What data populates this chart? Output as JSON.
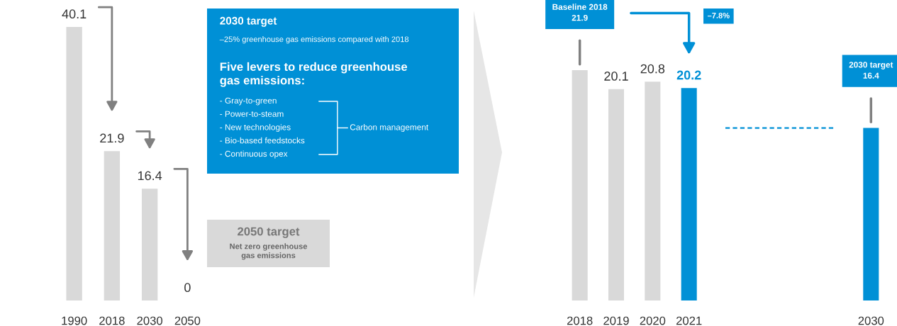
{
  "chart_data": [
    {
      "type": "bar",
      "categories": [
        "1990",
        "2018",
        "2030",
        "2050"
      ],
      "data_labels": true,
      "series": [
        {
          "type": "bar",
          "color": "#d9d9d9",
          "values": [
            40.1,
            21.9,
            16.4,
            0
          ]
        }
      ]
    },
    {
      "type": "other",
      "title": "2030 target",
      "subtitle": "–25% greenhouse gas emissions compared with 2018",
      "annotations": [
        "Five levers to reduce greenhouse\ngas emissions:",
        "- Gray-to-green",
        "- Power-to-steam",
        "- New technologies",
        "- Bio-based feedstocks",
        "- Continuous opex",
        "Carbon management"
      ]
    },
    {
      "type": "other",
      "title": "2050 target",
      "subtitle": "Net zero greenhouse\ngas emissions"
    },
    {
      "type": "bar",
      "categories": [
        "2018",
        "2019",
        "2020",
        "2021",
        null,
        null,
        null,
        null,
        "2030"
      ],
      "series": [
        {
          "type": "bar",
          "colors": [
            "#d9d9d9",
            "#d9d9d9",
            "#d9d9d9",
            "#0090d6",
            null,
            null,
            null,
            null,
            "#0090d6"
          ],
          "values": [
            21.9,
            20.1,
            20.8,
            20.2,
            null,
            null,
            null,
            null,
            16.4
          ],
          "value_labels": [
            null,
            "20.1",
            "20.8",
            "20.2",
            null,
            null,
            null,
            null,
            null
          ]
        },
        {
          "type": "line",
          "color": "#0090d6",
          "line_style": "dashed",
          "values": [
            null,
            null,
            null,
            null,
            16.4,
            16.4,
            16.4,
            16.4,
            null
          ]
        }
      ],
      "annotations": [
        "Baseline 2018\n21.9",
        "2030 target\n16.4",
        "–7.8%"
      ]
    }
  ]
}
